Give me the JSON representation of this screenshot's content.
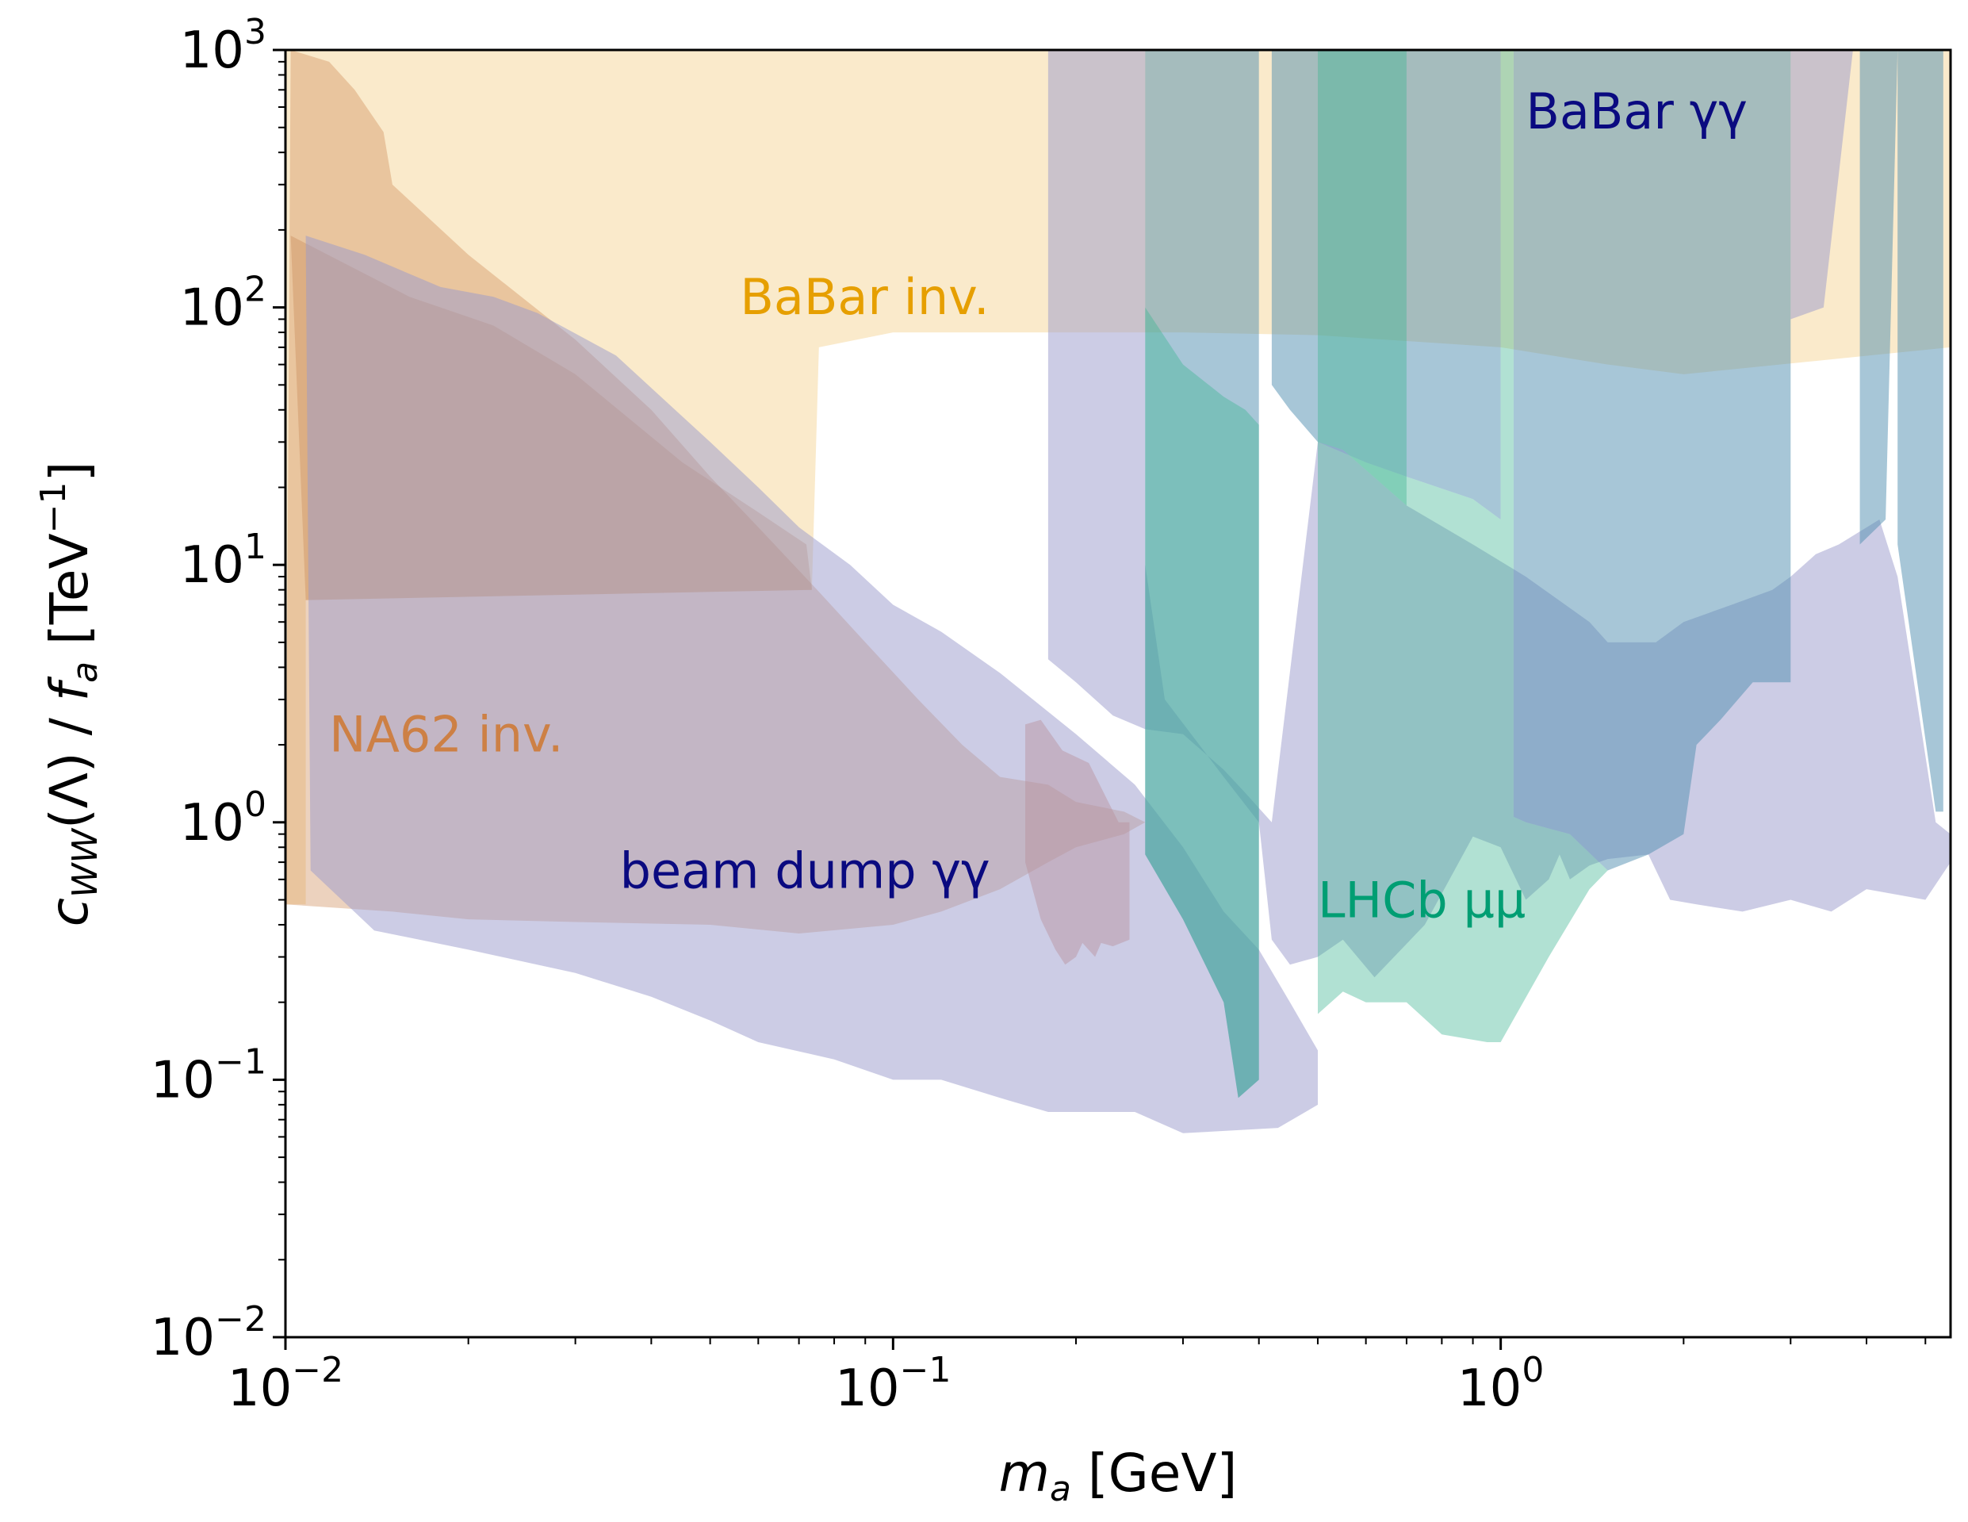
{
  "chart_data": {
    "type": "area",
    "title": "",
    "xlabel": {
      "var": "m",
      "sub": "a",
      "unit": " [GeV]"
    },
    "ylabel": {
      "var": "c",
      "sub": "WW",
      "mid": "(Λ) / ",
      "var2": "f",
      "sub2": "a",
      "unit": " [TeV",
      "unit_sup": "−1",
      "unit_end": "]"
    },
    "xscale": "log",
    "yscale": "log",
    "xlim": [
      0.01,
      5.5
    ],
    "ylim": [
      0.01,
      1000
    ],
    "xticks": [
      {
        "value": 0.01,
        "base": "10",
        "exp": "−2"
      },
      {
        "value": 0.1,
        "base": "10",
        "exp": "−1"
      },
      {
        "value": 1,
        "base": "10",
        "exp": "0"
      }
    ],
    "yticks": [
      {
        "value": 0.01,
        "base": "10",
        "exp": "−2"
      },
      {
        "value": 0.1,
        "base": "10",
        "exp": "−1"
      },
      {
        "value": 1,
        "base": "10",
        "exp": "0"
      },
      {
        "value": 10,
        "base": "10",
        "exp": "1"
      },
      {
        "value": 100,
        "base": "10",
        "exp": "2"
      },
      {
        "value": 1000,
        "base": "10",
        "exp": "3"
      }
    ],
    "regions": [
      {
        "name": "BaBar inv.",
        "color": "#f2c46b",
        "opacity": 0.35,
        "label": {
          "text": "BaBar inv.",
          "x": 0.056,
          "y": 110,
          "color": "#e69f00"
        },
        "polygons": [
          [
            [
              0.01,
              0.48
            ],
            [
              0.01,
              1000
            ],
            [
              0.01035,
              1000
            ],
            [
              0.0115,
              1000
            ],
            [
              0.18,
              1000
            ],
            [
              0.4,
              1000
            ],
            [
              5.5,
              1000
            ],
            [
              5.5,
              70
            ],
            [
              2.0,
              55
            ],
            [
              1.5,
              60
            ],
            [
              1.0,
              70
            ],
            [
              0.5,
              78
            ],
            [
              0.3,
              80
            ],
            [
              0.2,
              80
            ],
            [
              0.1,
              80
            ],
            [
              0.0755,
              70
            ],
            [
              0.0735,
              8
            ],
            [
              0.0108,
              7.3
            ],
            [
              0.0108,
              0.48
            ]
          ]
        ]
      },
      {
        "name": "NA62 inv.",
        "color": "#cc8a55",
        "opacity": 0.38,
        "label": {
          "text": "NA62 inv.",
          "x": 0.0118,
          "y": 2.2,
          "color": "#cd8045"
        },
        "polygons": [
          [
            [
              0.01,
              0.48
            ],
            [
              0.0102,
              1000
            ],
            [
              0.0118,
              900
            ],
            [
              0.013,
              700
            ],
            [
              0.0145,
              480
            ],
            [
              0.015,
              300
            ],
            [
              0.02,
              160
            ],
            [
              0.03,
              75
            ],
            [
              0.04,
              40
            ],
            [
              0.05,
              22
            ],
            [
              0.06,
              14
            ],
            [
              0.075,
              8
            ],
            [
              0.09,
              5
            ],
            [
              0.11,
              3
            ],
            [
              0.13,
              2
            ],
            [
              0.15,
              1.5
            ],
            [
              0.18,
              1.4
            ],
            [
              0.2,
              1.2
            ],
            [
              0.24,
              1.1
            ],
            [
              0.26,
              1.0
            ],
            [
              0.24,
              0.9
            ],
            [
              0.2,
              0.8
            ],
            [
              0.18,
              0.7
            ],
            [
              0.15,
              0.55
            ],
            [
              0.12,
              0.45
            ],
            [
              0.1,
              0.4
            ],
            [
              0.07,
              0.37
            ],
            [
              0.05,
              0.4
            ],
            [
              0.03,
              0.41
            ],
            [
              0.02,
              0.42
            ],
            [
              0.015,
              0.45
            ],
            [
              0.01,
              0.48
            ]
          ]
        ]
      },
      {
        "name": "NA62 inv. inner",
        "color": "#c07a45",
        "opacity": 0.3,
        "polygons": [
          [
            [
              0.0102,
              190
            ],
            [
              0.016,
              110
            ],
            [
              0.022,
              85
            ],
            [
              0.03,
              55
            ],
            [
              0.045,
              25
            ],
            [
              0.06,
              16
            ],
            [
              0.072,
              12
            ],
            [
              0.0735,
              8
            ],
            [
              0.0108,
              7.3
            ]
          ]
        ]
      },
      {
        "name": "beam dump γγ",
        "color": "#9a9acc",
        "opacity": 0.5,
        "label": {
          "text": "beam dump γγ",
          "x": 0.0355,
          "y": 0.65,
          "color": "#0a0a80"
        },
        "polygons": [
          [
            [
              0.0108,
              190
            ],
            [
              0.0135,
              160
            ],
            [
              0.018,
              120
            ],
            [
              0.022,
              110
            ],
            [
              0.026,
              95
            ],
            [
              0.035,
              65
            ],
            [
              0.05,
              30
            ],
            [
              0.06,
              20
            ],
            [
              0.07,
              14
            ],
            [
              0.085,
              10
            ],
            [
              0.1,
              7
            ],
            [
              0.12,
              5.5
            ],
            [
              0.15,
              3.8
            ],
            [
              0.2,
              2.2
            ],
            [
              0.25,
              1.4
            ],
            [
              0.3,
              0.8
            ],
            [
              0.35,
              0.45
            ],
            [
              0.4,
              0.32
            ],
            [
              0.45,
              0.2
            ],
            [
              0.5,
              0.13
            ],
            [
              0.5,
              0.08
            ],
            [
              0.43,
              0.065
            ],
            [
              0.3,
              0.062
            ],
            [
              0.25,
              0.075
            ],
            [
              0.18,
              0.075
            ],
            [
              0.15,
              0.085
            ],
            [
              0.12,
              0.1
            ],
            [
              0.1,
              0.1
            ],
            [
              0.08,
              0.12
            ],
            [
              0.06,
              0.14
            ],
            [
              0.05,
              0.17
            ],
            [
              0.04,
              0.21
            ],
            [
              0.03,
              0.26
            ],
            [
              0.02,
              0.32
            ],
            [
              0.014,
              0.38
            ],
            [
              0.011,
              0.65
            ],
            [
              0.0108,
              190
            ]
          ],
          [
            [
              0.18,
              1000
            ],
            [
              0.18,
              4.3
            ],
            [
              0.2,
              3.5
            ],
            [
              0.23,
              2.6
            ],
            [
              0.26,
              2.3
            ],
            [
              0.3,
              2.2
            ],
            [
              0.35,
              1.6
            ],
            [
              0.38,
              1.3
            ],
            [
              0.42,
              1.0
            ],
            [
              0.5,
              30
            ],
            [
              0.55,
              28
            ],
            [
              0.7,
              17
            ],
            [
              0.9,
              12
            ],
            [
              1.1,
              9
            ],
            [
              1.4,
              6
            ],
            [
              1.5,
              5
            ],
            [
              1.8,
              5
            ],
            [
              2.0,
              6
            ],
            [
              2.4,
              7
            ],
            [
              2.8,
              8
            ],
            [
              3.0,
              9
            ],
            [
              3.3,
              11
            ],
            [
              3.6,
              12
            ],
            [
              4.2,
              15
            ],
            [
              4.5,
              9
            ],
            [
              5.2,
              1.0
            ],
            [
              5.5,
              0.9
            ],
            [
              5.5,
              0.7
            ],
            [
              5.0,
              0.5
            ],
            [
              4.0,
              0.55
            ],
            [
              3.5,
              0.45
            ],
            [
              3.0,
              0.5
            ],
            [
              2.5,
              0.45
            ],
            [
              2.1,
              0.48
            ],
            [
              1.9,
              0.5
            ],
            [
              1.75,
              0.75
            ],
            [
              1.5,
              0.72
            ],
            [
              1.4,
              0.68
            ],
            [
              1.3,
              0.6
            ],
            [
              1.25,
              0.75
            ],
            [
              1.2,
              0.6
            ],
            [
              1.1,
              0.5
            ],
            [
              1.0,
              0.8
            ],
            [
              0.9,
              0.88
            ],
            [
              0.75,
              0.4
            ],
            [
              0.62,
              0.25
            ],
            [
              0.55,
              0.35
            ],
            [
              0.5,
              0.3
            ],
            [
              0.45,
              0.28
            ],
            [
              0.42,
              0.35
            ],
            [
              0.4,
              1.0
            ],
            [
              0.35,
              1.5
            ],
            [
              0.28,
              3.0
            ],
            [
              0.26,
              10
            ],
            [
              0.26,
              1000
            ]
          ],
          [
            [
              3.0,
              1000
            ],
            [
              3.0,
              90
            ],
            [
              3.4,
              100
            ],
            [
              3.8,
              1000
            ]
          ]
        ]
      },
      {
        "name": "beam dump γγ peak",
        "color": "#b8909c",
        "opacity": 0.45,
        "polygons": [
          [
            [
              0.165,
              2.4
            ],
            [
              0.175,
              2.5
            ],
            [
              0.19,
              1.9
            ],
            [
              0.21,
              1.7
            ],
            [
              0.235,
              1.0
            ],
            [
              0.245,
              1.0
            ],
            [
              0.245,
              0.35
            ],
            [
              0.23,
              0.33
            ],
            [
              0.22,
              0.34
            ],
            [
              0.215,
              0.3
            ],
            [
              0.205,
              0.34
            ],
            [
              0.2,
              0.3
            ],
            [
              0.192,
              0.28
            ],
            [
              0.185,
              0.32
            ],
            [
              0.175,
              0.42
            ],
            [
              0.165,
              0.7
            ]
          ]
        ]
      },
      {
        "name": "BaBar γγ",
        "color": "#4f8eb0",
        "opacity": 0.5,
        "label": {
          "text": "BaBar γγ",
          "x": 1.1,
          "y": 580,
          "color": "#0a0a80"
        },
        "polygons": [
          [
            [
              0.26,
              1000
            ],
            [
              0.26,
              0.75
            ],
            [
              0.3,
              0.42
            ],
            [
              0.35,
              0.2
            ],
            [
              0.37,
              0.085
            ],
            [
              0.4,
              0.1
            ],
            [
              0.4,
              1000
            ]
          ],
          [
            [
              0.42,
              1000
            ],
            [
              0.42,
              50
            ],
            [
              0.45,
              40
            ],
            [
              0.5,
              30
            ],
            [
              0.6,
              25
            ],
            [
              0.7,
              22
            ],
            [
              0.9,
              18
            ],
            [
              1.0,
              15
            ],
            [
              1.0,
              1000
            ]
          ],
          [
            [
              1.05,
              1000
            ],
            [
              1.05,
              1.05
            ],
            [
              1.1,
              1.0
            ],
            [
              1.3,
              0.9
            ],
            [
              1.5,
              0.65
            ],
            [
              1.75,
              0.75
            ],
            [
              2.0,
              0.9
            ],
            [
              2.1,
              2.0
            ],
            [
              2.3,
              2.5
            ],
            [
              2.6,
              3.5
            ],
            [
              3.0,
              3.5
            ],
            [
              3.0,
              1000
            ]
          ],
          [
            [
              3.9,
              1000
            ],
            [
              3.9,
              12
            ],
            [
              4.3,
              15
            ],
            [
              4.5,
              1000
            ]
          ],
          [
            [
              4.5,
              1000
            ],
            [
              4.5,
              12
            ],
            [
              5.2,
              1.1
            ],
            [
              5.35,
              1.1
            ],
            [
              5.35,
              1000
            ]
          ]
        ]
      },
      {
        "name": "LHCb μμ",
        "color": "#3cb592",
        "opacity": 0.4,
        "label": {
          "text": "LHCb μμ",
          "x": 0.5,
          "y": 0.5,
          "color": "#009e73"
        },
        "polygons": [
          [
            [
              0.26,
              100
            ],
            [
              0.3,
              60
            ],
            [
              0.35,
              45
            ],
            [
              0.38,
              40
            ],
            [
              0.4,
              35
            ],
            [
              0.4,
              0.1
            ],
            [
              0.37,
              0.085
            ],
            [
              0.35,
              0.2
            ],
            [
              0.3,
              0.42
            ],
            [
              0.26,
              0.75
            ]
          ],
          [
            [
              0.5,
              1000
            ],
            [
              0.5,
              0.18
            ],
            [
              0.55,
              0.22
            ],
            [
              0.6,
              0.2
            ],
            [
              0.7,
              0.2
            ],
            [
              0.8,
              0.15
            ],
            [
              0.95,
              0.14
            ],
            [
              1.0,
              0.14
            ],
            [
              1.2,
              0.3
            ],
            [
              1.4,
              0.55
            ],
            [
              1.5,
              0.65
            ],
            [
              1.3,
              0.9
            ],
            [
              1.1,
              1.0
            ],
            [
              1.05,
              1.05
            ],
            [
              1.05,
              1000
            ],
            [
              1.0,
              1000
            ],
            [
              1.0,
              15
            ],
            [
              0.9,
              18
            ],
            [
              0.7,
              22
            ],
            [
              0.6,
              25
            ],
            [
              0.5,
              30
            ],
            [
              0.5,
              1000
            ]
          ],
          [
            [
              0.5,
              1000
            ],
            [
              0.5,
              30
            ],
            [
              0.55,
              28
            ],
            [
              0.7,
              17
            ],
            [
              0.7,
              1000
            ]
          ]
        ]
      }
    ]
  }
}
